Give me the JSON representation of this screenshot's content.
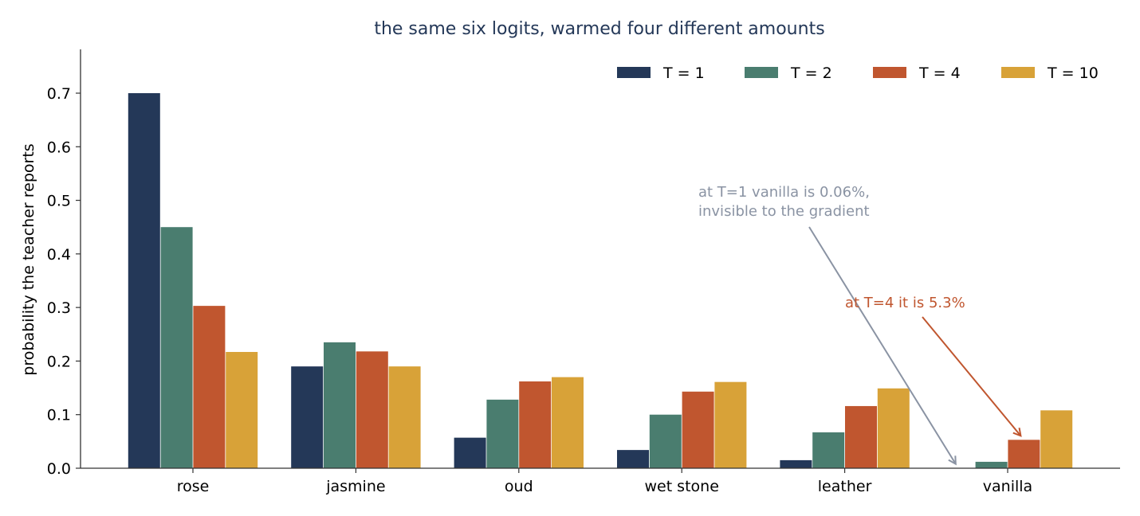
{
  "chart_data": {
    "type": "bar",
    "title": "the same six logits, warmed four different amounts",
    "xlabel": "",
    "ylabel": "probability the teacher reports",
    "categories": [
      "rose",
      "jasmine",
      "oud",
      "wet stone",
      "leather",
      "vanilla"
    ],
    "series": [
      {
        "name": "T = 1",
        "color": "#243858",
        "values": [
          0.7,
          0.19,
          0.057,
          0.034,
          0.015,
          0.0006
        ]
      },
      {
        "name": "T = 2",
        "color": "#4a7d6f",
        "values": [
          0.45,
          0.235,
          0.128,
          0.1,
          0.067,
          0.012
        ]
      },
      {
        "name": "T = 4",
        "color": "#c0562f",
        "values": [
          0.303,
          0.218,
          0.162,
          0.143,
          0.116,
          0.053
        ]
      },
      {
        "name": "T = 10",
        "color": "#d8a238",
        "values": [
          0.217,
          0.19,
          0.17,
          0.161,
          0.149,
          0.108
        ]
      }
    ],
    "ylim": [
      0,
      0.78
    ],
    "yticks": [
      "0.0",
      "0.1",
      "0.2",
      "0.3",
      "0.4",
      "0.5",
      "0.6",
      "0.7"
    ],
    "ytick_values": [
      0,
      0.1,
      0.2,
      0.3,
      0.4,
      0.5,
      0.6,
      0.7
    ],
    "grid": false,
    "legend_position": "top-right",
    "title_color": "#243858",
    "annotations": [
      {
        "lines": [
          "at T=1 vanilla is 0.06%,",
          "invisible to the gradient"
        ],
        "color": "#8a93a3",
        "target_category": "vanilla",
        "target_series": 0
      },
      {
        "lines": [
          "at T=4 it is 5.3%"
        ],
        "color": "#c0562f",
        "target_category": "vanilla",
        "target_series": 2
      }
    ]
  }
}
